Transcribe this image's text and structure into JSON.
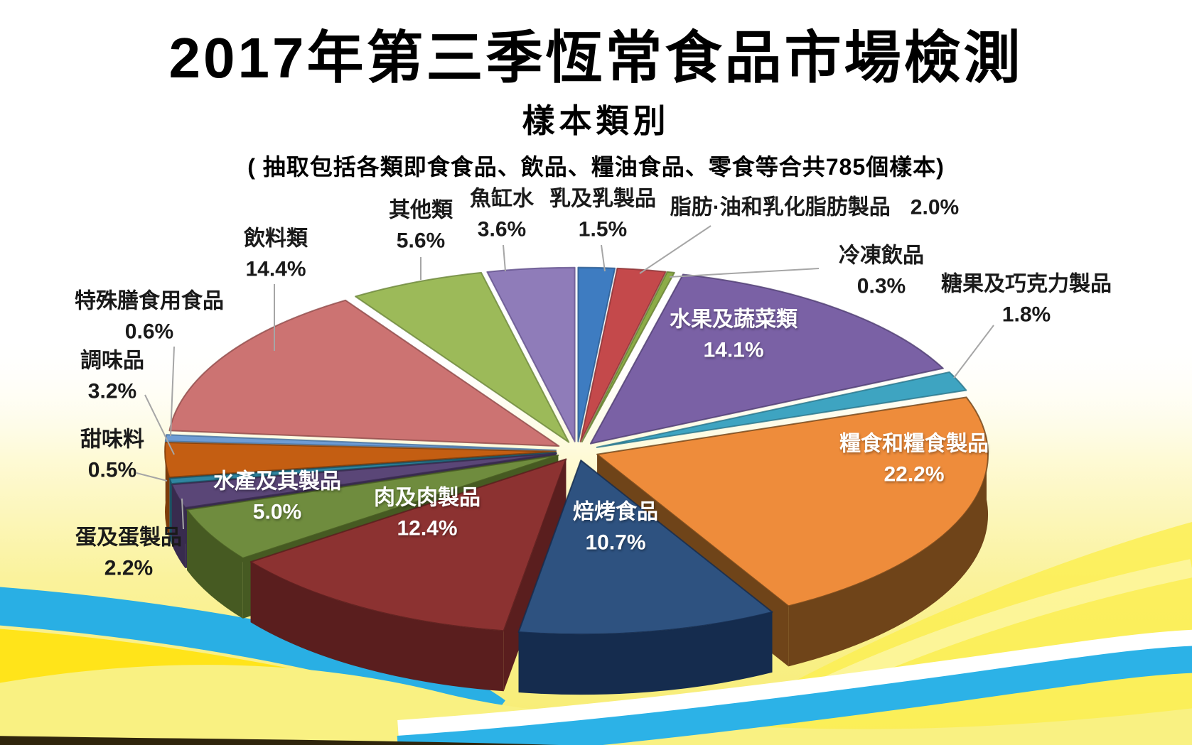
{
  "title": "2017年第三季恆常食品市場檢測",
  "subtitle": "樣本類別",
  "note": "( 抽取包括各類即食食品、飲品、糧油食品、零食等合共785個樣本)",
  "chart_data": {
    "type": "pie",
    "style": "3d-exploded",
    "title": "2017年第三季恆常食品市場檢測 樣本類別",
    "unit": "%",
    "samples_total": 785,
    "start_angle_deg": 0,
    "direction": "clockwise",
    "slices": [
      {
        "label": "乳及乳製品",
        "value": 1.5,
        "display": "1.5%",
        "color": "#3E7CC1",
        "side": "#27578D",
        "label_placement": "outside"
      },
      {
        "label": "脂肪·油和乳化脂肪製品",
        "value": 2.0,
        "display": "2.0%",
        "color": "#C4494B",
        "side": "#8A3133",
        "label_placement": "outside"
      },
      {
        "label": "冷凍飲品",
        "value": 0.3,
        "display": "0.3%",
        "color": "#8CAC48",
        "side": "#637C31",
        "label_placement": "outside"
      },
      {
        "label": "水果及蔬菜類",
        "value": 14.1,
        "display": "14.1%",
        "color": "#7A61A5",
        "side": "#4E3C71",
        "label_placement": "inside"
      },
      {
        "label": "糖果及巧克力製品",
        "value": 1.8,
        "display": "1.8%",
        "color": "#3EA4C1",
        "side": "#29748A",
        "label_placement": "outside"
      },
      {
        "label": "糧食和糧食製品",
        "value": 22.2,
        "display": "22.2%",
        "color": "#EE8C3B",
        "side": "#6F4419",
        "label_placement": "inside"
      },
      {
        "label": "焙烤食品",
        "value": 10.7,
        "display": "10.7%",
        "color": "#2E5280",
        "side": "#152C4E",
        "label_placement": "inside"
      },
      {
        "label": "肉及肉製品",
        "value": 12.4,
        "display": "12.4%",
        "color": "#8C3231",
        "side": "#5A1E1E",
        "label_placement": "inside"
      },
      {
        "label": "水產及其製品",
        "value": 5.0,
        "display": "5.0%",
        "color": "#6F8C3E",
        "side": "#465A22",
        "label_placement": "inside"
      },
      {
        "label": "蛋及蛋製品",
        "value": 2.2,
        "display": "2.2%",
        "color": "#5A4677",
        "side": "#382B4E",
        "label_placement": "outside"
      },
      {
        "label": "甜味料",
        "value": 0.5,
        "display": "0.5%",
        "color": "#2F85A0",
        "side": "#1C5363",
        "label_placement": "outside"
      },
      {
        "label": "調味品",
        "value": 3.2,
        "display": "3.2%",
        "color": "#C45E12",
        "side": "#7C3B0A",
        "label_placement": "outside"
      },
      {
        "label": "特殊膳食用食品",
        "value": 0.6,
        "display": "0.6%",
        "color": "#6E9CD4",
        "side": "#46709E",
        "label_placement": "outside"
      },
      {
        "label": "飲料類",
        "value": 14.4,
        "display": "14.4%",
        "color": "#CC7372",
        "side": "#8F4A49",
        "label_placement": "outside"
      },
      {
        "label": "其他類",
        "value": 5.6,
        "display": "5.6%",
        "color": "#9CBA59",
        "side": "#6B863B",
        "label_placement": "outside"
      },
      {
        "label": "魚缸水",
        "value": 3.6,
        "display": "3.6%",
        "color": "#8F7CB9",
        "side": "#61508B",
        "label_placement": "outside"
      }
    ],
    "leader_line_color": "#A6A6A6"
  },
  "background": {
    "page": "#FFFFFF",
    "gradient_pale_yellow": "#FAF29B",
    "gradient_deep_yellow": "#F7EC6E",
    "right_accent_yellow": "#FBEE54",
    "right_highlight": "#FDF6A8",
    "cyan_band": "#29AFE4",
    "cyan_band_front": "#2CB2E7",
    "gold_band": "#FFE41A",
    "pale_wave": "#F9F182",
    "white_band": "#FFFFFF",
    "bottom_strip": "#2F250C"
  }
}
